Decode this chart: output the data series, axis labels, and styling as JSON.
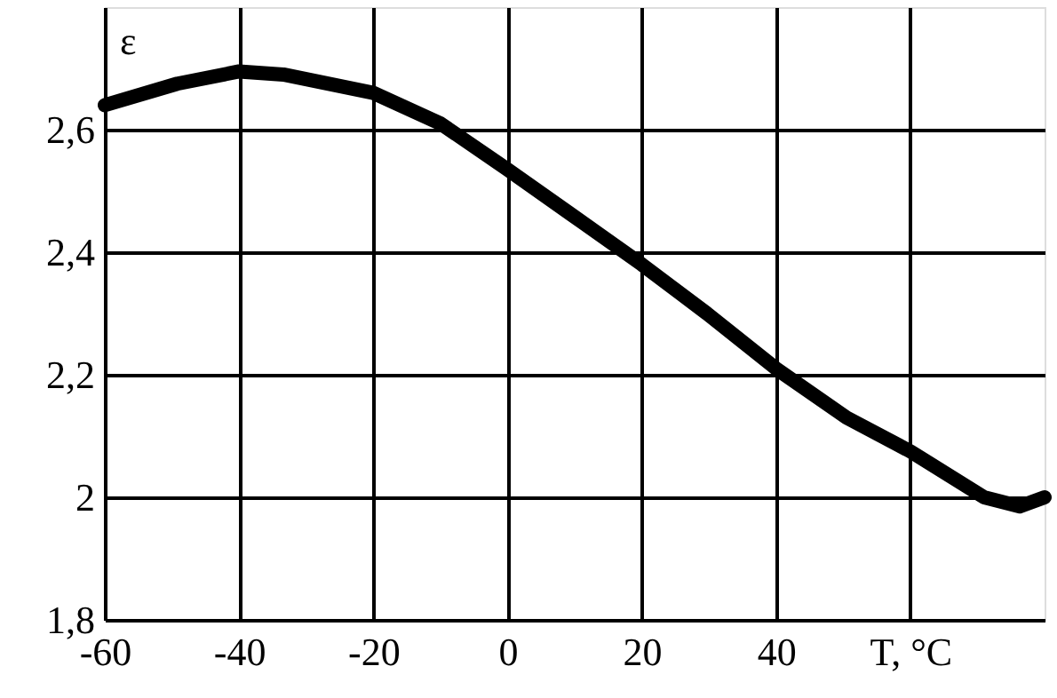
{
  "chart_data": {
    "type": "line",
    "ylabel": "ε",
    "x": [
      -60,
      -49.2,
      -40,
      -33.4,
      -20,
      -10,
      0,
      9.7,
      20,
      29.7,
      40,
      50.5,
      60,
      71,
      76.3,
      80
    ],
    "series": [
      {
        "color": "#000000",
        "values": [
          2.64,
          2.675,
          2.695,
          2.69,
          2.66,
          2.61,
          2.535,
          2.46,
          2.38,
          2.3,
          2.21,
          2.13,
          2.075,
          2.0,
          1.985,
          2.0
        ]
      }
    ],
    "xlim": [
      -60,
      80
    ],
    "ylim": [
      1.8,
      2.8
    ],
    "xticks": [
      -60,
      -40,
      -20,
      0,
      20,
      40,
      {
        "value": 60,
        "label": "T, °C"
      }
    ],
    "yticks": [
      {
        "value": 1.8,
        "label": "1,8"
      },
      2,
      {
        "value": 2.2,
        "label": "2,2"
      },
      {
        "value": 2.4,
        "label": "2,4"
      },
      {
        "value": 2.6,
        "label": "2,6"
      }
    ],
    "grid": true,
    "marker": "none",
    "line_style": "solid"
  }
}
